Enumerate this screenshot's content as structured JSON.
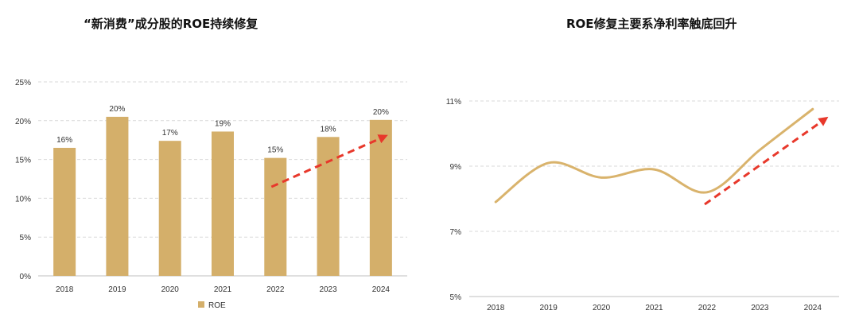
{
  "chart_data": [
    {
      "type": "bar",
      "title": "“新消费”成分股的ROE持续修复",
      "categories": [
        "2018",
        "2019",
        "2020",
        "2021",
        "2022",
        "2023",
        "2024"
      ],
      "series": [
        {
          "name": "ROE",
          "values": [
            16.5,
            20.5,
            17.4,
            18.6,
            15.2,
            17.9,
            20.1
          ],
          "labels": [
            "16%",
            "20%",
            "17%",
            "19%",
            "15%",
            "18%",
            "20%"
          ]
        }
      ],
      "yticks": [
        "0%",
        "5%",
        "10%",
        "15%",
        "20%",
        "25%"
      ],
      "ylim": [
        0,
        25
      ],
      "grid": true,
      "legend": "bottom-center",
      "annotation": "red dashed upward trend arrow from 2022 to 2024",
      "colors": {
        "bar": "#D4AF6A",
        "arrow": "#E8382B",
        "grid": "#D9D9D9"
      }
    },
    {
      "type": "line",
      "title": "ROE修复主要系净利率触底回升",
      "categories": [
        "2018",
        "2019",
        "2020",
        "2021",
        "2022",
        "2023",
        "2024"
      ],
      "series": [
        {
          "values": [
            7.9,
            9.1,
            8.65,
            8.9,
            8.2,
            9.5,
            10.75
          ]
        }
      ],
      "yticks": [
        "5%",
        "7%",
        "9%",
        "11%"
      ],
      "ylim": [
        5,
        11
      ],
      "grid": true,
      "annotation": "red dashed upward trend arrow from 2022 to 2024",
      "colors": {
        "line": "#D9B36C",
        "arrow": "#E8382B",
        "grid": "#D9D9D9"
      }
    }
  ]
}
